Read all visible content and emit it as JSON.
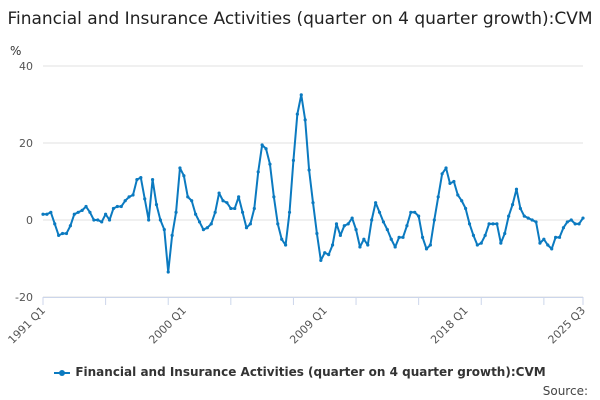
{
  "chart_data": {
    "type": "line",
    "title": "Financial and Insurance Activities (quarter on 4 quarter growth):CVM",
    "ylabel": "%",
    "xlabel": "",
    "ylim": [
      -20,
      40
    ],
    "yticks": [
      40,
      20,
      0,
      -20
    ],
    "xticks": [
      "1991 Q1",
      "2000 Q1",
      "2009 Q1",
      "2018 Q1",
      "2025 Q3"
    ],
    "grid": true,
    "legend": "bottom",
    "color": "#0b7ac0",
    "x_start": "1991 Q1",
    "x_end": "2025 Q3",
    "series": [
      {
        "name": "Financial and Insurance Activities (quarter on 4 quarter growth):CVM",
        "values": [
          1.5,
          1.5,
          2,
          -1,
          -4,
          -3.5,
          -3.5,
          -1.5,
          1.5,
          2,
          2.5,
          3.5,
          2,
          0,
          0,
          -0.5,
          1.5,
          0,
          3,
          3.5,
          3.5,
          5,
          6,
          6.5,
          10.5,
          11,
          5.5,
          0,
          10.5,
          4,
          0,
          -2.5,
          -13.5,
          -4,
          2,
          13.5,
          11.5,
          6,
          5,
          1.5,
          -0.5,
          -2.5,
          -2,
          -1,
          2,
          7,
          5,
          4.5,
          3,
          3,
          6,
          2,
          -2,
          -1,
          3,
          12.5,
          19.5,
          18.5,
          14.5,
          6,
          -1,
          -5,
          -6.5,
          2,
          15.5,
          27.5,
          32.5,
          26,
          13,
          4.5,
          -3.5,
          -10.5,
          -8.5,
          -9,
          -6.5,
          -1,
          -4,
          -1.5,
          -1,
          0.5,
          -2.5,
          -7,
          -5,
          -6.5,
          0,
          4.5,
          2,
          -0.5,
          -2.5,
          -5,
          -7,
          -4.5,
          -4.5,
          -1.5,
          2,
          2,
          1,
          -4.5,
          -7.5,
          -6.5,
          0,
          6,
          12,
          13.5,
          9.5,
          10,
          6.5,
          5,
          3,
          -1,
          -4,
          -6.5,
          -6,
          -4,
          -1,
          -1,
          -1,
          -6,
          -3.5,
          1,
          4,
          8,
          3,
          1,
          0.5,
          0,
          -0.5,
          -6,
          -5,
          -6.5,
          -7.5,
          -4.5,
          -4.5,
          -2,
          -0.5,
          0,
          -1,
          -1,
          0.5
        ]
      }
    ]
  },
  "source_label": "Source:"
}
